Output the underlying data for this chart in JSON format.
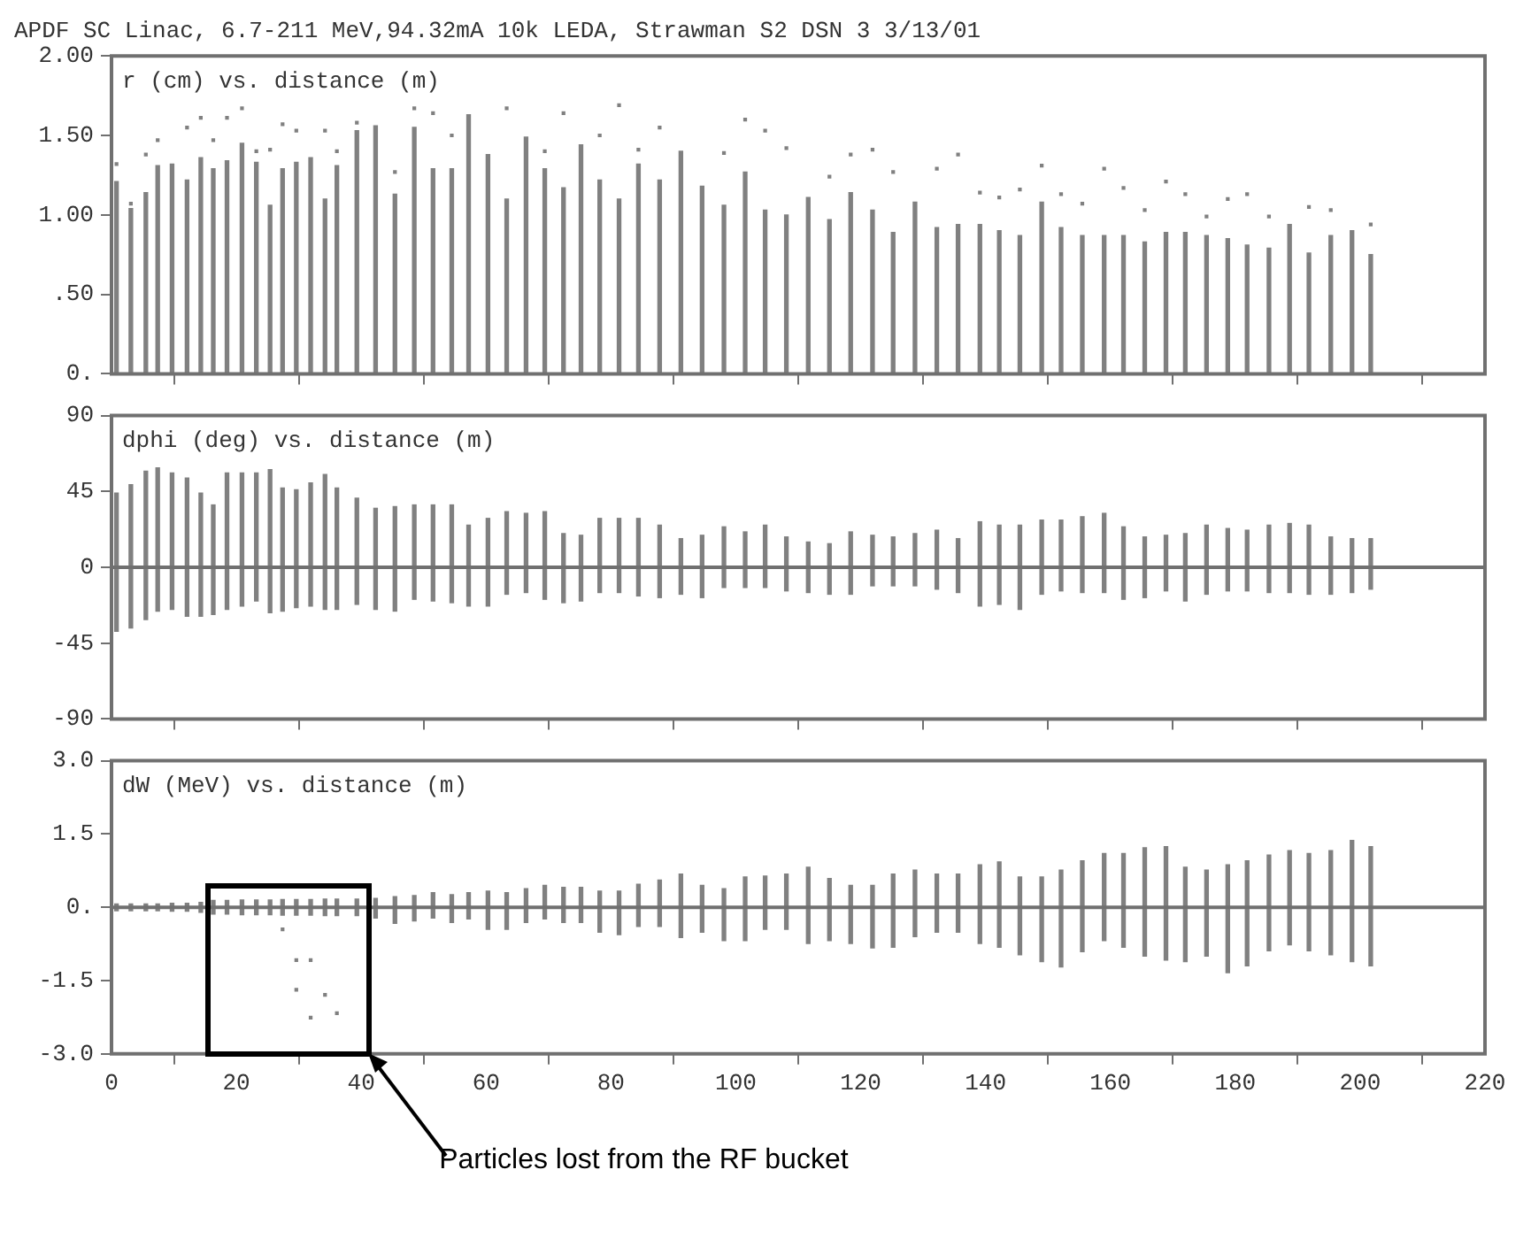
{
  "chart_data": [
    {
      "type": "bar",
      "title": "APDF SC Linac, 6.7-211 MeV,94.32mA 10k LEDA, Strawman S2 DSN 3 3/13/01",
      "annotations": [
        "r (cm) vs. distance (m)"
      ],
      "x": [
        0.8,
        3.1,
        5.5,
        7.4,
        9.7,
        12.1,
        14.3,
        16.3,
        18.5,
        20.9,
        23.2,
        25.4,
        27.4,
        29.6,
        31.9,
        34.2,
        36.1,
        39.3,
        42.3,
        45.4,
        48.5,
        51.5,
        54.5,
        57.2,
        60.3,
        63.3,
        66.4,
        69.4,
        72.4,
        75.2,
        78.2,
        81.3,
        84.4,
        87.8,
        91.2,
        94.6,
        98.1,
        101.5,
        104.7,
        108.1,
        111.6,
        115.0,
        118.4,
        121.9,
        125.2,
        128.7,
        132.2,
        135.6,
        139.1,
        142.2,
        145.5,
        149.0,
        152.1,
        155.5,
        159.0,
        162.1,
        165.5,
        168.9,
        172.0,
        175.4,
        178.8,
        181.9,
        185.4,
        188.7,
        191.8,
        195.3,
        198.7,
        201.7
      ],
      "series": [
        {
          "color": "#808080",
          "values": [
            1.21,
            1.04,
            1.14,
            1.31,
            1.32,
            1.22,
            1.36,
            1.29,
            1.34,
            1.45,
            1.33,
            1.06,
            1.29,
            1.33,
            1.36,
            1.1,
            1.31,
            1.53,
            1.56,
            1.13,
            1.55,
            1.29,
            1.29,
            1.63,
            1.38,
            1.1,
            1.49,
            1.29,
            1.17,
            1.44,
            1.22,
            1.1,
            1.32,
            1.22,
            1.4,
            1.18,
            1.06,
            1.27,
            1.03,
            1.0,
            1.11,
            0.97,
            1.14,
            1.03,
            0.89,
            1.08,
            0.92,
            0.94,
            0.94,
            0.9,
            0.87,
            1.08,
            0.92,
            0.87,
            0.87,
            0.87,
            0.83,
            0.89,
            0.89,
            0.87,
            0.85,
            0.81,
            0.79,
            0.94,
            0.76,
            0.87,
            0.9,
            0.75
          ]
        },
        {
          "type": "scatter",
          "color": "#808080",
          "values": [
            1.32,
            1.07,
            1.38,
            1.47,
            null,
            1.55,
            1.61,
            1.47,
            1.61,
            1.67,
            1.4,
            1.41,
            1.57,
            1.53,
            null,
            1.53,
            1.4,
            1.58,
            null,
            1.27,
            1.67,
            1.64,
            1.5,
            null,
            null,
            1.67,
            null,
            1.4,
            1.64,
            null,
            1.5,
            1.69,
            1.41,
            1.55,
            null,
            null,
            1.39,
            1.6,
            1.53,
            1.42,
            null,
            1.24,
            1.38,
            1.41,
            1.27,
            null,
            1.29,
            1.38,
            1.14,
            1.11,
            1.16,
            1.31,
            1.13,
            1.07,
            1.29,
            1.17,
            1.03,
            1.21,
            1.13,
            0.99,
            1.1,
            1.13,
            0.99,
            null,
            1.05,
            1.03,
            null,
            0.94
          ]
        }
      ],
      "xlim": [
        0,
        220
      ],
      "xticks": [
        0,
        20,
        40,
        60,
        80,
        100,
        120,
        140,
        160,
        180,
        200,
        220
      ],
      "ylim": [
        0,
        2
      ],
      "yticks": [
        {
          "value": 0,
          "label": "0."
        },
        {
          "value": 0.5,
          "label": ".50"
        },
        {
          "value": 1,
          "label": "1.00"
        },
        {
          "value": 1.5,
          "label": "1.50"
        },
        {
          "value": 2,
          "label": "2.00"
        }
      ],
      "tick_labels": "y",
      "marker": "square"
    },
    {
      "type": "bar",
      "annotations": [
        "dphi (deg) vs. distance (m)"
      ],
      "x": [
        0.8,
        3.1,
        5.5,
        7.4,
        9.7,
        12.1,
        14.3,
        16.3,
        18.5,
        20.9,
        23.2,
        25.4,
        27.4,
        29.6,
        31.9,
        34.2,
        36.1,
        39.3,
        42.3,
        45.4,
        48.5,
        51.5,
        54.5,
        57.2,
        60.3,
        63.3,
        66.4,
        69.4,
        72.4,
        75.2,
        78.2,
        81.3,
        84.4,
        87.8,
        91.2,
        94.6,
        98.1,
        101.5,
        104.7,
        108.1,
        111.6,
        115.0,
        118.4,
        121.9,
        125.2,
        128.7,
        132.2,
        135.6,
        139.1,
        142.2,
        145.5,
        149.0,
        152.1,
        155.5,
        159.0,
        162.1,
        165.5,
        168.9,
        172.0,
        175.4,
        178.8,
        181.9,
        185.4,
        188.7,
        191.8,
        195.3,
        198.7,
        201.7
      ],
      "series": [
        {
          "color": "#808080",
          "base": [
            -38,
            -36,
            -31,
            -26,
            -25,
            -29,
            -29,
            -28,
            -25,
            -23,
            -20,
            -27,
            -26,
            -24,
            -23,
            -25,
            -25,
            -22,
            -25,
            -26,
            -19,
            -20,
            -21,
            -23,
            -23,
            -16,
            -15,
            -19,
            -21,
            -20,
            -15,
            -15,
            -17,
            -18,
            -16,
            -18,
            -12,
            -12,
            -12,
            -14,
            -15,
            -16,
            -16,
            -11,
            -11,
            -11,
            -13,
            -15,
            -23,
            -22,
            -25,
            -16,
            -14,
            -15,
            -15,
            -19,
            -18,
            -14,
            -20,
            -16,
            -14,
            -14,
            -15,
            -15,
            -16,
            -16,
            -15,
            -13
          ],
          "values": [
            82,
            85,
            88,
            85,
            81,
            82,
            73,
            65,
            81,
            79,
            76,
            85,
            73,
            70,
            73,
            80,
            72,
            63,
            60,
            62,
            56,
            57,
            58,
            48,
            52,
            49,
            47,
            52,
            41,
            39,
            44,
            44,
            46,
            43,
            33,
            37,
            36,
            33,
            37,
            32,
            30,
            30,
            37,
            30,
            29,
            31,
            35,
            32,
            50,
            47,
            50,
            44,
            42,
            45,
            47,
            43,
            36,
            33,
            40,
            41,
            37,
            36,
            40,
            41,
            41,
            34,
            32,
            30
          ]
        }
      ],
      "xlim": [
        0,
        220
      ],
      "xticks": [
        0,
        20,
        40,
        60,
        80,
        100,
        120,
        140,
        160,
        180,
        200,
        220
      ],
      "ylim": [
        -90,
        90
      ],
      "yticks": [
        -90,
        -45,
        0,
        45,
        90
      ],
      "tick_labels": "y",
      "ref_lines": [
        {
          "axis": "y",
          "value": 0,
          "color": "#707070"
        }
      ]
    },
    {
      "type": "bar",
      "annotations": [
        "dW (MeV) vs. distance (m)",
        "Particles lost from the RF bucket"
      ],
      "x": [
        0.8,
        3.1,
        5.5,
        7.4,
        9.7,
        12.1,
        14.3,
        16.3,
        18.5,
        20.9,
        23.2,
        25.4,
        27.4,
        29.6,
        31.9,
        34.2,
        36.1,
        39.3,
        42.3,
        45.4,
        48.5,
        51.5,
        54.5,
        57.2,
        60.3,
        63.3,
        66.4,
        69.4,
        72.4,
        75.2,
        78.2,
        81.3,
        84.4,
        87.8,
        91.2,
        94.6,
        98.1,
        101.5,
        104.7,
        108.1,
        111.6,
        115.0,
        118.4,
        121.9,
        125.2,
        128.7,
        132.2,
        135.6,
        139.1,
        142.2,
        145.5,
        149.0,
        152.1,
        155.5,
        159.0,
        162.1,
        165.5,
        168.9,
        172.0,
        175.4,
        178.8,
        181.9,
        185.4,
        188.7,
        191.8,
        195.3,
        198.7,
        201.7
      ],
      "series": [
        {
          "color": "#808080",
          "base": [
            -0.07,
            -0.07,
            -0.07,
            -0.07,
            -0.08,
            -0.08,
            -0.1,
            -0.14,
            -0.14,
            -0.15,
            -0.15,
            -0.15,
            -0.16,
            -0.16,
            -0.16,
            -0.17,
            -0.17,
            -0.17,
            -0.22,
            -0.33,
            -0.28,
            -0.22,
            -0.31,
            -0.24,
            -0.45,
            -0.45,
            -0.31,
            -0.24,
            -0.31,
            -0.31,
            -0.51,
            -0.56,
            -0.39,
            -0.39,
            -0.62,
            -0.51,
            -0.68,
            -0.68,
            -0.45,
            -0.45,
            -0.74,
            -0.68,
            -0.74,
            -0.83,
            -0.82,
            -0.6,
            -0.51,
            -0.51,
            -0.74,
            -0.82,
            -0.97,
            -1.11,
            -1.22,
            -0.91,
            -0.68,
            -0.82,
            -1.0,
            -1.08,
            -1.11,
            -1.0,
            -1.34,
            -1.2,
            -0.89,
            -0.77,
            -0.89,
            -0.97,
            -1.11,
            -1.2
          ],
          "values": [
            0.14,
            0.14,
            0.14,
            0.14,
            0.16,
            0.16,
            0.2,
            0.28,
            0.28,
            0.3,
            0.3,
            0.3,
            0.32,
            0.32,
            0.32,
            0.34,
            0.34,
            0.34,
            0.4,
            0.55,
            0.52,
            0.52,
            0.57,
            0.54,
            0.78,
            0.75,
            0.69,
            0.69,
            0.72,
            0.72,
            0.84,
            0.89,
            0.86,
            0.95,
            1.3,
            0.96,
            1.06,
            1.3,
            1.09,
            1.13,
            1.56,
            1.27,
            1.19,
            1.28,
            1.5,
            1.36,
            1.19,
            1.19,
            1.61,
            1.75,
            1.59,
            1.73,
            1.98,
            1.86,
            1.78,
            1.92,
            2.22,
            2.32,
            1.93,
            1.76,
            2.21,
            2.15,
            1.96,
            1.93,
            1.99,
            2.13,
            2.48,
            2.44
          ]
        },
        {
          "type": "scatter",
          "color": "#808080",
          "x": [
            27.4,
            29.6,
            31.9,
            29.6,
            34.2,
            31.9,
            36.1
          ],
          "values": [
            -0.45,
            -1.08,
            -1.08,
            -1.69,
            -1.79,
            -2.26,
            -2.17
          ]
        }
      ],
      "xlim": [
        0,
        220
      ],
      "xticks": [
        0,
        20,
        40,
        60,
        80,
        100,
        120,
        140,
        160,
        180,
        200,
        220
      ],
      "ylim": [
        -3,
        3
      ],
      "yticks": [
        {
          "value": -3,
          "label": "-3.0"
        },
        {
          "value": -1.5,
          "label": "-1.5"
        },
        {
          "value": 0,
          "label": "0."
        },
        {
          "value": 1.5,
          "label": "1.5"
        },
        {
          "value": 3,
          "label": "3.0"
        }
      ],
      "marker": "square",
      "ref_lines": [
        {
          "axis": "y",
          "value": 0,
          "color": "#707070"
        }
      ]
    }
  ]
}
